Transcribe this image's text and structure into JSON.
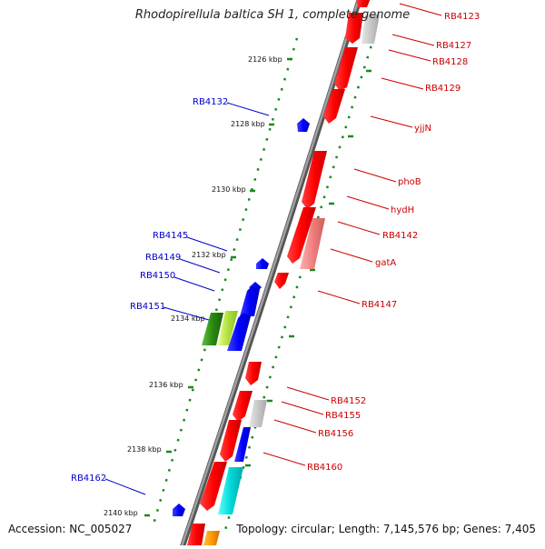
{
  "title": "Rhodopirellula baltica SH 1, complete genome",
  "footer": {
    "accession": "Accession: NC_005027",
    "stats": "Topology: circular; Length: 7,145,576 bp; Genes: 7,405"
  },
  "colors": {
    "backbone": "#888888",
    "tick": "#1a8a1a",
    "forward_label": "#0000cc",
    "reverse_label": "#cc0000"
  },
  "ticks": [
    {
      "label": "2126 kbp"
    },
    {
      "label": "2128 kbp"
    },
    {
      "label": "2130 kbp"
    },
    {
      "label": "2132 kbp"
    },
    {
      "label": "2134 kbp"
    },
    {
      "label": "2136 kbp"
    },
    {
      "label": "2138 kbp"
    },
    {
      "label": "2140 kbp"
    }
  ],
  "forward_labels": [
    {
      "label": "RB4132"
    },
    {
      "label": "RB4145"
    },
    {
      "label": "RB4149"
    },
    {
      "label": "RB4150"
    },
    {
      "label": "RB4151"
    },
    {
      "label": "RB4162"
    }
  ],
  "reverse_labels": [
    {
      "label": "RB4123"
    },
    {
      "label": "RB4127"
    },
    {
      "label": "RB4128"
    },
    {
      "label": "RB4129"
    },
    {
      "label": "yjjN"
    },
    {
      "label": "phoB"
    },
    {
      "label": "hydH"
    },
    {
      "label": "RB4142"
    },
    {
      "label": "gatA"
    },
    {
      "label": "RB4147"
    },
    {
      "label": "RB4152"
    },
    {
      "label": "RB4155"
    },
    {
      "label": "RB4156"
    },
    {
      "label": "RB4160"
    }
  ]
}
